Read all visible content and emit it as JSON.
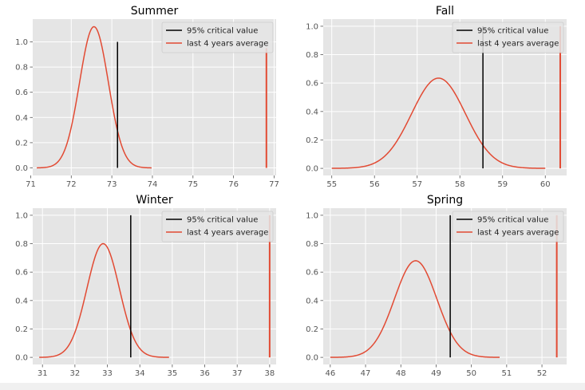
{
  "colors": {
    "background": "#e5e5e5",
    "grid": "#ffffff",
    "curve": "#e24a33",
    "critical": "#000000",
    "average": "#e24a33",
    "tick_text": "#555555",
    "title_text": "#000000"
  },
  "legend_labels": {
    "critical": "95% critical value",
    "average": "last 4 years average"
  },
  "chart_data": [
    {
      "type": "line",
      "title": "Summer",
      "xlim": [
        71.05,
        77.05
      ],
      "ylim": [
        -0.06,
        1.18
      ],
      "xticks": [
        71,
        72,
        73,
        74,
        75,
        76,
        77
      ],
      "yticks": [
        0.0,
        0.2,
        0.4,
        0.6,
        0.8,
        1.0
      ],
      "ytick_labels": [
        "0.0",
        "0.2",
        "0.4",
        "0.6",
        "0.8",
        "1.0"
      ],
      "curve": {
        "mean": 72.56,
        "sd": 0.355,
        "peak": 1.12,
        "x_range": [
          71.15,
          73.98
        ]
      },
      "critical_value": {
        "x": 73.14,
        "y_range": [
          0,
          1.0
        ]
      },
      "average_value": {
        "x": 76.81,
        "y_range": [
          0,
          0.95
        ]
      },
      "legend": "upper right",
      "grid": true
    },
    {
      "type": "line",
      "title": "Fall",
      "xlim": [
        54.8,
        60.5
      ],
      "ylim": [
        -0.05,
        1.05
      ],
      "xticks": [
        55,
        56,
        57,
        58,
        59,
        60
      ],
      "yticks": [
        0.0,
        0.2,
        0.4,
        0.6,
        0.8,
        1.0
      ],
      "ytick_labels": [
        "0.0",
        "0.2",
        "0.4",
        "0.6",
        "0.8",
        "1.0"
      ],
      "curve": {
        "mean": 57.5,
        "sd": 0.63,
        "peak": 0.635,
        "x_range": [
          55.0,
          60.0
        ]
      },
      "critical_value": {
        "x": 58.54,
        "y_range": [
          0,
          1.0
        ]
      },
      "average_value": {
        "x": 60.35,
        "y_range": [
          0,
          1.0
        ]
      },
      "legend": "upper right",
      "grid": true
    },
    {
      "type": "line",
      "title": "Winter",
      "xlim": [
        30.7,
        38.2
      ],
      "ylim": [
        -0.05,
        1.05
      ],
      "xticks": [
        31,
        32,
        33,
        34,
        35,
        36,
        37,
        38
      ],
      "yticks": [
        0.0,
        0.2,
        0.4,
        0.6,
        0.8,
        1.0
      ],
      "ytick_labels": [
        "0.0",
        "0.2",
        "0.4",
        "0.6",
        "0.8",
        "1.0"
      ],
      "curve": {
        "mean": 32.87,
        "sd": 0.5,
        "peak": 0.8,
        "x_range": [
          30.9,
          34.9
        ]
      },
      "critical_value": {
        "x": 33.72,
        "y_range": [
          0,
          1.0
        ]
      },
      "average_value": {
        "x": 38.0,
        "y_range": [
          0,
          1.0
        ]
      },
      "legend": "upper right",
      "grid": true
    },
    {
      "type": "line",
      "title": "Spring",
      "xlim": [
        45.8,
        52.7
      ],
      "ylim": [
        -0.05,
        1.05
      ],
      "xticks": [
        46,
        47,
        48,
        49,
        50,
        51,
        52
      ],
      "yticks": [
        0.0,
        0.2,
        0.4,
        0.6,
        0.8,
        1.0
      ],
      "ytick_labels": [
        "0.0",
        "0.2",
        "0.4",
        "0.6",
        "0.8",
        "1.0"
      ],
      "curve": {
        "mean": 48.42,
        "sd": 0.6,
        "peak": 0.68,
        "x_range": [
          46.0,
          50.8
        ]
      },
      "critical_value": {
        "x": 49.4,
        "y_range": [
          0,
          1.0
        ]
      },
      "average_value": {
        "x": 52.42,
        "y_range": [
          0,
          1.0
        ]
      },
      "legend": "upper right",
      "grid": true
    }
  ]
}
